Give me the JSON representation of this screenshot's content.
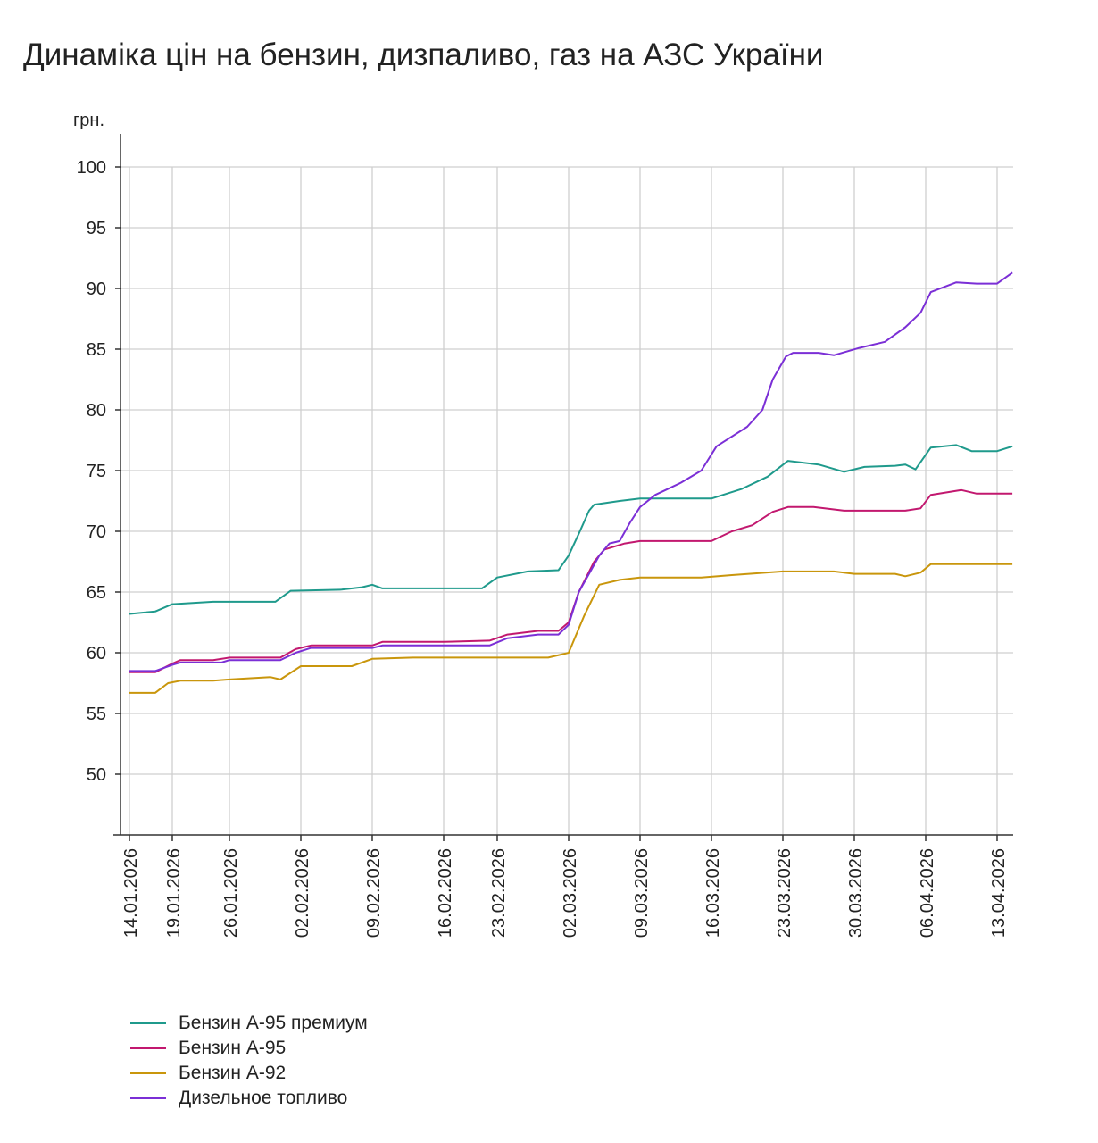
{
  "chart_data": {
    "type": "line",
    "title": "Динаміка цін на бензин, дизпаливо, газ на АЗС України",
    "ylabel": "грн.",
    "xlabel": "",
    "ylim": [
      45,
      100
    ],
    "yticks": [
      50,
      55,
      60,
      65,
      70,
      75,
      80,
      85,
      90,
      95,
      100
    ],
    "grid": true,
    "legend_position": "bottom-left",
    "x_unit": "days since 14.01.2026",
    "xticks": [
      {
        "label": "14.01.2026",
        "day": 0
      },
      {
        "label": "19.01.2026",
        "day": 5
      },
      {
        "label": "26.01.2026",
        "day": 12
      },
      {
        "label": "02.02.2026",
        "day": 19
      },
      {
        "label": "09.02.2026",
        "day": 26
      },
      {
        "label": "16.02.2026",
        "day": 33
      },
      {
        "label": "23.02.2026",
        "day": 40
      },
      {
        "label": "02.03.2026",
        "day": 47
      },
      {
        "label": "09.03.2026",
        "day": 54
      },
      {
        "label": "16.03.2026",
        "day": 61
      },
      {
        "label": "23.03.2026",
        "day": 68
      },
      {
        "label": "30.03.2026",
        "day": 75
      },
      {
        "label": "06.04.2026",
        "day": 82
      },
      {
        "label": "13.04.2026",
        "day": 89
      }
    ],
    "series": [
      {
        "name": "Бензин А-95 премиум",
        "color": "#1f9a8c",
        "points": [
          [
            0,
            63.2
          ],
          [
            3,
            63.4
          ],
          [
            5,
            64.0
          ],
          [
            10,
            64.2
          ],
          [
            16.5,
            64.2
          ],
          [
            18,
            65.1
          ],
          [
            23,
            65.2
          ],
          [
            25,
            65.4
          ],
          [
            26,
            65.6
          ],
          [
            27,
            65.3
          ],
          [
            38,
            65.3
          ],
          [
            40,
            66.2
          ],
          [
            43,
            66.7
          ],
          [
            46,
            66.8
          ],
          [
            47,
            68.0
          ],
          [
            48,
            69.8
          ],
          [
            49,
            71.7
          ],
          [
            49.5,
            72.2
          ],
          [
            52,
            72.5
          ],
          [
            54,
            72.7
          ],
          [
            61,
            72.7
          ],
          [
            64,
            73.5
          ],
          [
            66.5,
            74.5
          ],
          [
            68.5,
            75.8
          ],
          [
            71.5,
            75.5
          ],
          [
            74,
            74.9
          ],
          [
            76,
            75.3
          ],
          [
            79,
            75.4
          ],
          [
            80,
            75.5
          ],
          [
            81,
            75.1
          ],
          [
            82.5,
            76.9
          ],
          [
            85,
            77.1
          ],
          [
            86.5,
            76.6
          ],
          [
            89,
            76.6
          ],
          [
            90.5,
            77.0
          ]
        ]
      },
      {
        "name": "Бензин А-95",
        "color": "#c2186f",
        "points": [
          [
            0,
            58.4
          ],
          [
            3,
            58.4
          ],
          [
            5,
            59.1
          ],
          [
            6,
            59.4
          ],
          [
            10,
            59.4
          ],
          [
            12,
            59.6
          ],
          [
            17,
            59.6
          ],
          [
            18.5,
            60.3
          ],
          [
            20,
            60.6
          ],
          [
            26,
            60.6
          ],
          [
            27,
            60.9
          ],
          [
            33,
            60.9
          ],
          [
            39,
            61.0
          ],
          [
            41,
            61.5
          ],
          [
            44,
            61.8
          ],
          [
            46,
            61.8
          ],
          [
            47,
            62.5
          ],
          [
            48,
            65.0
          ],
          [
            49.5,
            67.5
          ],
          [
            50.5,
            68.5
          ],
          [
            52.5,
            69.0
          ],
          [
            54,
            69.2
          ],
          [
            61,
            69.2
          ],
          [
            63,
            70.0
          ],
          [
            65,
            70.5
          ],
          [
            67,
            71.6
          ],
          [
            68.5,
            72.0
          ],
          [
            71,
            72.0
          ],
          [
            74,
            71.7
          ],
          [
            80,
            71.7
          ],
          [
            81.5,
            71.9
          ],
          [
            82.5,
            73.0
          ],
          [
            85.5,
            73.4
          ],
          [
            87,
            73.1
          ],
          [
            90.5,
            73.1
          ]
        ]
      },
      {
        "name": "Бензин А-92",
        "color": "#c9960c",
        "points": [
          [
            0,
            56.7
          ],
          [
            3,
            56.7
          ],
          [
            4.5,
            57.5
          ],
          [
            6,
            57.7
          ],
          [
            10,
            57.7
          ],
          [
            12,
            57.8
          ],
          [
            16,
            58.0
          ],
          [
            17,
            57.8
          ],
          [
            19,
            58.9
          ],
          [
            24,
            58.9
          ],
          [
            26,
            59.5
          ],
          [
            30,
            59.6
          ],
          [
            45,
            59.6
          ],
          [
            46.5,
            59.9
          ],
          [
            47,
            60.0
          ],
          [
            48.5,
            63.0
          ],
          [
            50,
            65.6
          ],
          [
            52,
            66.0
          ],
          [
            54,
            66.2
          ],
          [
            60,
            66.2
          ],
          [
            63,
            66.4
          ],
          [
            68,
            66.7
          ],
          [
            73,
            66.7
          ],
          [
            75,
            66.5
          ],
          [
            79,
            66.5
          ],
          [
            80,
            66.3
          ],
          [
            81.5,
            66.6
          ],
          [
            82.5,
            67.3
          ],
          [
            90.5,
            67.3
          ]
        ]
      },
      {
        "name": "Дизельное топливо",
        "color": "#7b2fd6",
        "points": [
          [
            0,
            58.5
          ],
          [
            3,
            58.5
          ],
          [
            5,
            59.0
          ],
          [
            6,
            59.2
          ],
          [
            11,
            59.2
          ],
          [
            12,
            59.4
          ],
          [
            17,
            59.4
          ],
          [
            18.5,
            60.0
          ],
          [
            20,
            60.4
          ],
          [
            26,
            60.4
          ],
          [
            27,
            60.6
          ],
          [
            39,
            60.6
          ],
          [
            41,
            61.2
          ],
          [
            44,
            61.5
          ],
          [
            46,
            61.5
          ],
          [
            47,
            62.3
          ],
          [
            48,
            65.0
          ],
          [
            50,
            68.0
          ],
          [
            51,
            69.0
          ],
          [
            52,
            69.2
          ],
          [
            53,
            70.7
          ],
          [
            54,
            72.0
          ],
          [
            55.5,
            73.0
          ],
          [
            58,
            74.0
          ],
          [
            60,
            75.0
          ],
          [
            61.5,
            77.0
          ],
          [
            64.5,
            78.6
          ],
          [
            66,
            80.0
          ],
          [
            67,
            82.5
          ],
          [
            68.3,
            84.4
          ],
          [
            69,
            84.7
          ],
          [
            71.5,
            84.7
          ],
          [
            73,
            84.5
          ],
          [
            75.5,
            85.1
          ],
          [
            78,
            85.6
          ],
          [
            80,
            86.8
          ],
          [
            81.5,
            88.0
          ],
          [
            82.5,
            89.7
          ],
          [
            85,
            90.5
          ],
          [
            87,
            90.4
          ],
          [
            89,
            90.4
          ],
          [
            90.5,
            91.3
          ]
        ]
      }
    ]
  }
}
